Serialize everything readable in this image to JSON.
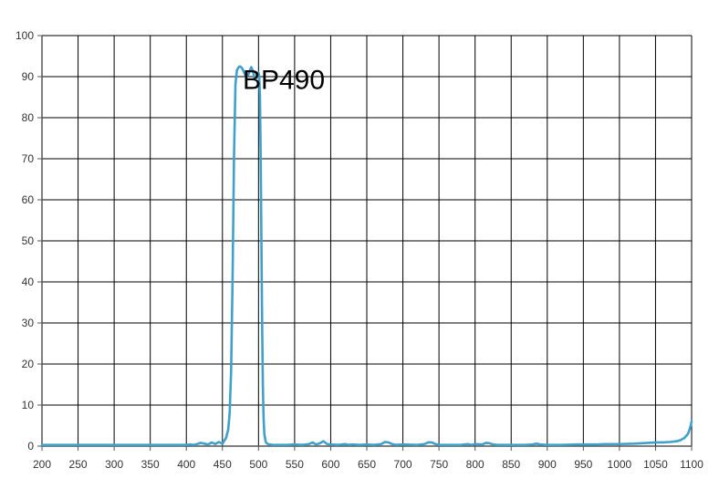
{
  "chart_data": {
    "type": "line",
    "title": "",
    "xlabel": "",
    "ylabel": "",
    "xlim": [
      200,
      1100
    ],
    "ylim": [
      0,
      100
    ],
    "grid": true,
    "x_ticks": [
      200,
      250,
      300,
      350,
      400,
      450,
      500,
      550,
      600,
      650,
      700,
      750,
      800,
      850,
      900,
      950,
      1000,
      1050,
      1100
    ],
    "y_ticks": [
      0,
      10,
      20,
      30,
      40,
      50,
      60,
      70,
      80,
      90,
      100
    ],
    "annotations": [
      {
        "text": "BP490",
        "x": 535,
        "y": 87
      }
    ],
    "colors": {
      "line": "#3fa0cc",
      "grid": "#000000",
      "axis": "#555555"
    },
    "series": [
      {
        "x": [
          200,
          300,
          400,
          405,
          410,
          415,
          420,
          425,
          430,
          435,
          440,
          445,
          450,
          455,
          458,
          460,
          462,
          464,
          466,
          468,
          470,
          472,
          474,
          476,
          478,
          480,
          482,
          484,
          486,
          488,
          490,
          492,
          494,
          496,
          498,
          500,
          501,
          502,
          503,
          504,
          505,
          506,
          507,
          508,
          510,
          512,
          515,
          520,
          530,
          540,
          550,
          560,
          570,
          575,
          580,
          585,
          590,
          595,
          600,
          610,
          620,
          625,
          630,
          640,
          650,
          660,
          670,
          675,
          680,
          685,
          690,
          700,
          720,
          730,
          735,
          740,
          745,
          750,
          760,
          780,
          790,
          795,
          800,
          810,
          815,
          820,
          825,
          830,
          850,
          870,
          880,
          885,
          890,
          900,
          920,
          940,
          950,
          970,
          980,
          1000,
          1020,
          1040,
          1050,
          1060,
          1070,
          1080,
          1085,
          1090,
          1095,
          1098,
          1100
        ],
        "y": [
          0.3,
          0.3,
          0.3,
          0.4,
          0.3,
          0.5,
          0.8,
          0.6,
          0.4,
          0.9,
          0.5,
          1.0,
          0.6,
          2.0,
          4.0,
          8.0,
          18.0,
          40.0,
          70.0,
          88.0,
          91.5,
          92.2,
          92.5,
          92.3,
          91.8,
          91.0,
          90.3,
          90.0,
          90.5,
          91.5,
          92.3,
          91.5,
          90.0,
          89.5,
          90.0,
          91.0,
          90.0,
          85.0,
          70.0,
          50.0,
          30.0,
          15.0,
          7.0,
          3.0,
          1.0,
          0.6,
          0.4,
          0.3,
          0.3,
          0.3,
          0.4,
          0.3,
          0.5,
          0.9,
          0.4,
          0.7,
          1.2,
          0.5,
          0.4,
          0.3,
          0.5,
          0.3,
          0.4,
          0.3,
          0.4,
          0.3,
          0.5,
          1.0,
          0.9,
          0.5,
          0.3,
          0.4,
          0.3,
          0.5,
          0.9,
          0.9,
          0.5,
          0.3,
          0.3,
          0.3,
          0.5,
          0.3,
          0.5,
          0.4,
          0.8,
          0.7,
          0.4,
          0.3,
          0.3,
          0.3,
          0.4,
          0.6,
          0.4,
          0.3,
          0.3,
          0.4,
          0.4,
          0.4,
          0.5,
          0.5,
          0.6,
          0.8,
          0.9,
          0.9,
          1.0,
          1.2,
          1.5,
          2.0,
          3.0,
          4.5,
          6.0
        ]
      }
    ]
  }
}
